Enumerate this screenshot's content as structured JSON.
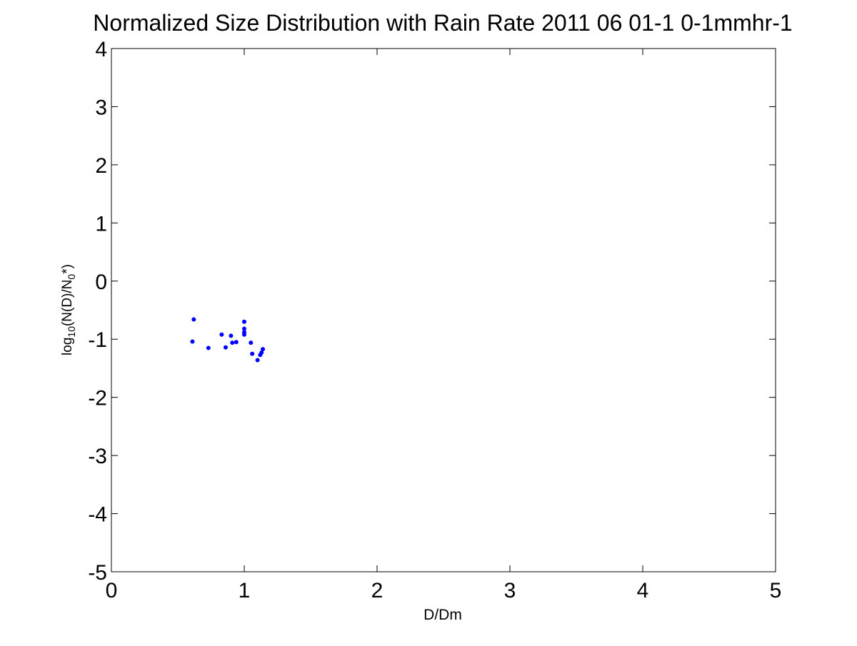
{
  "chart_data": {
    "type": "scatter",
    "title": "Normalized Size Distribution with Rain Rate 2011 06 01-1 0-1mmhr-1",
    "xlabel": "D/Dm",
    "ylabel": {
      "prefix": "log",
      "sub1": "10",
      "middle": "(N(D)/N",
      "sub2": "0",
      "suffix": "*)"
    },
    "xlim": [
      0,
      5
    ],
    "ylim": [
      -5,
      4
    ],
    "x_ticks": [
      0,
      1,
      2,
      3,
      4,
      5
    ],
    "y_ticks": [
      -5,
      -4,
      -3,
      -2,
      -1,
      0,
      1,
      2,
      3,
      4
    ],
    "grid": false,
    "marker_color": "#0000ff",
    "series": [
      {
        "points": [
          [
            0.61,
            -1.04
          ],
          [
            0.62,
            -0.66
          ],
          [
            0.73,
            -1.15
          ],
          [
            0.83,
            -0.92
          ],
          [
            0.86,
            -1.14
          ],
          [
            0.9,
            -0.94
          ],
          [
            0.91,
            -1.06
          ],
          [
            0.94,
            -1.05
          ],
          [
            1.0,
            -0.7
          ],
          [
            1.0,
            -0.82
          ],
          [
            1.0,
            -0.88
          ],
          [
            1.0,
            -0.92
          ],
          [
            1.05,
            -1.06
          ],
          [
            1.06,
            -1.25
          ],
          [
            1.1,
            -1.36
          ],
          [
            1.12,
            -1.27
          ],
          [
            1.13,
            -1.23
          ],
          [
            1.14,
            -1.17
          ]
        ]
      }
    ]
  }
}
